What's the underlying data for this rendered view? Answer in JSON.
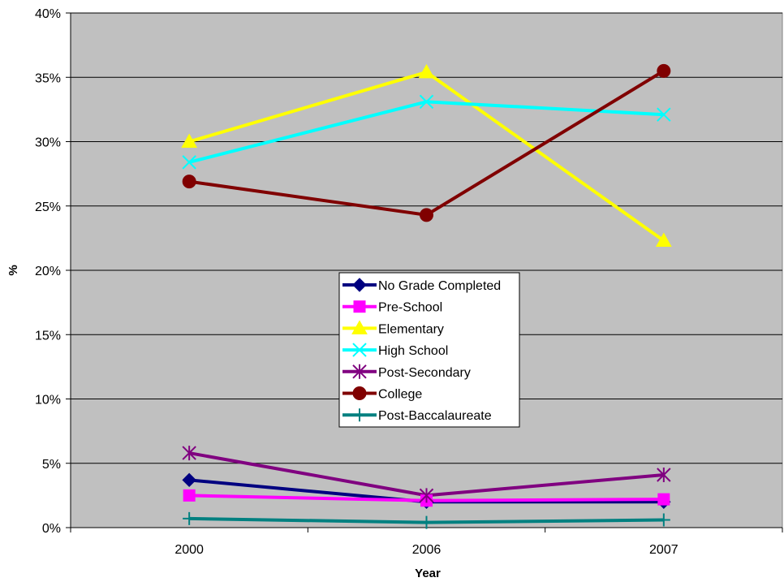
{
  "chart_data": {
    "type": "line",
    "title": "",
    "xlabel": "Year",
    "ylabel": "%",
    "categories": [
      "2000",
      "2006",
      "2007"
    ],
    "ylim": [
      0,
      40
    ],
    "y_ticks": [
      "0%",
      "5%",
      "10%",
      "15%",
      "20%",
      "25%",
      "30%",
      "35%",
      "40%"
    ],
    "grid": "horizontal",
    "legend_position": "center",
    "plot_background": "#c0c0c0",
    "series": [
      {
        "name": "No Grade Completed",
        "color": "#000080",
        "marker": "diamond",
        "values": [
          3.7,
          2.0,
          2.0
        ]
      },
      {
        "name": "Pre-School",
        "color": "#ff00ff",
        "marker": "square",
        "values": [
          2.5,
          2.1,
          2.2
        ]
      },
      {
        "name": "Elementary",
        "color": "#ffff00",
        "marker": "triangle",
        "values": [
          30.0,
          35.4,
          22.3
        ]
      },
      {
        "name": "High School",
        "color": "#00ffff",
        "marker": "x",
        "values": [
          28.4,
          33.1,
          32.1
        ]
      },
      {
        "name": "Post-Secondary",
        "color": "#800080",
        "marker": "star",
        "values": [
          5.8,
          2.5,
          4.1
        ]
      },
      {
        "name": "College",
        "color": "#800000",
        "marker": "circle",
        "values": [
          26.9,
          24.3,
          35.5
        ]
      },
      {
        "name": "Post-Baccalaureate",
        "color": "#008080",
        "marker": "plus",
        "values": [
          0.7,
          0.4,
          0.6
        ]
      }
    ]
  }
}
